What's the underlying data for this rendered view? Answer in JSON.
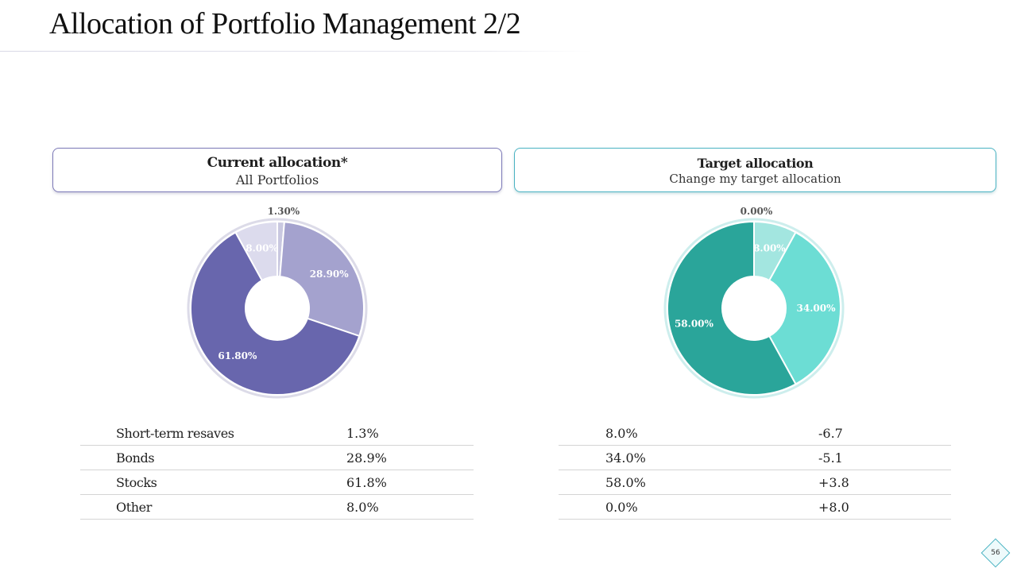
{
  "slide": {
    "title": "Allocation of Portfolio Management 2/2",
    "page_number": "56"
  },
  "current": {
    "header_title": "Current allocation*",
    "header_subtitle": "All Portfolios",
    "rows": [
      {
        "label": "Short-term resaves",
        "value": "1.3%"
      },
      {
        "label": "Bonds",
        "value": "28.9%"
      },
      {
        "label": "Stocks",
        "value": "61.8%"
      },
      {
        "label": "Other",
        "value": "8.0%"
      }
    ]
  },
  "target": {
    "header_title": "Target allocation",
    "header_subtitle": "Change my target allocation",
    "rows": [
      {
        "value": "8.0%",
        "change": "-6.7"
      },
      {
        "value": "34.0%",
        "change": "-5.1"
      },
      {
        "value": "58.0%",
        "change": "+3.8"
      },
      {
        "value": "0.0%",
        "change": "+8.0"
      }
    ]
  },
  "chart_data": [
    {
      "type": "pie",
      "donut": true,
      "slices": [
        {
          "value": 1.3,
          "label": "1.30%",
          "color": "#c9c8e0",
          "label_color": "#555555"
        },
        {
          "value": 28.9,
          "label": "28.90%",
          "color": "#a4a2ce",
          "label_color": "#ffffff"
        },
        {
          "value": 61.8,
          "label": "61.80%",
          "color": "#6866ad",
          "label_color": "#ffffff"
        },
        {
          "value": 8.0,
          "label": "8.00%",
          "color": "#dcdbed",
          "label_color": "#ffffff"
        }
      ]
    },
    {
      "type": "pie",
      "donut": true,
      "slices": [
        {
          "value": 0.0,
          "label": "0.00%",
          "color": "#e5f7f5",
          "label_color": "#555555"
        },
        {
          "value": 8.0,
          "label": "8.00%",
          "color": "#a3e6e0",
          "label_color": "#ffffff"
        },
        {
          "value": 34.0,
          "label": "34.00%",
          "color": "#6cddd4",
          "label_color": "#ffffff"
        },
        {
          "value": 58.0,
          "label": "58.00%",
          "color": "#2aa59a",
          "label_color": "#ffffff"
        }
      ]
    }
  ]
}
